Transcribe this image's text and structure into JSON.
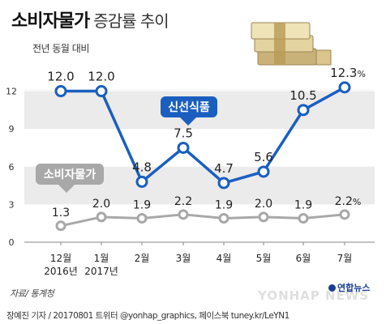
{
  "header": {
    "title_main": "소비자물가",
    "title_rest": "증감률 추이",
    "subtitle": "전년 동월 대비"
  },
  "footer": {
    "source": "자료/ 통계청",
    "credit": "장예진 기자 / 20170801 트위터 @yonhap_graphics, 페이스북 tuney.kr/LeYN1",
    "brand": "연합뉴스",
    "watermark": "YONHAP NEWS"
  },
  "colors": {
    "fresh_food": "#1a5fbf",
    "cpi": "#a8a8a8",
    "band": "#ebebeb"
  },
  "icon": "money-stack-icon",
  "chart_data": {
    "type": "line",
    "categories": [
      "12월\n2016년",
      "1월\n2017년",
      "2월",
      "3월",
      "4월",
      "5월",
      "6월",
      "7월"
    ],
    "category_labels": [
      [
        "12월",
        "2016년"
      ],
      [
        "1월",
        "2017년"
      ],
      [
        "2월"
      ],
      [
        "3월"
      ],
      [
        "4월"
      ],
      [
        "5월"
      ],
      [
        "6월"
      ],
      [
        "7월"
      ]
    ],
    "ylim": [
      0,
      13
    ],
    "yticks": [
      0,
      3,
      6,
      9,
      12
    ],
    "grid": "horizontal bands",
    "unit": "%",
    "series": [
      {
        "name": "신선식품",
        "values": [
          12.0,
          12.0,
          4.8,
          7.5,
          4.7,
          5.6,
          10.5,
          12.3
        ],
        "labels": [
          "12.0",
          "12.0",
          "4.8",
          "7.5",
          "4.7",
          "5.6",
          "10.5",
          "12.3%"
        ]
      },
      {
        "name": "소비자물가",
        "values": [
          1.3,
          2.0,
          1.9,
          2.2,
          1.9,
          2.0,
          1.9,
          2.2
        ],
        "labels": [
          "1.3",
          "2.0",
          "1.9",
          "2.2",
          "1.9",
          "2.0",
          "1.9",
          "2.2%"
        ]
      }
    ]
  }
}
